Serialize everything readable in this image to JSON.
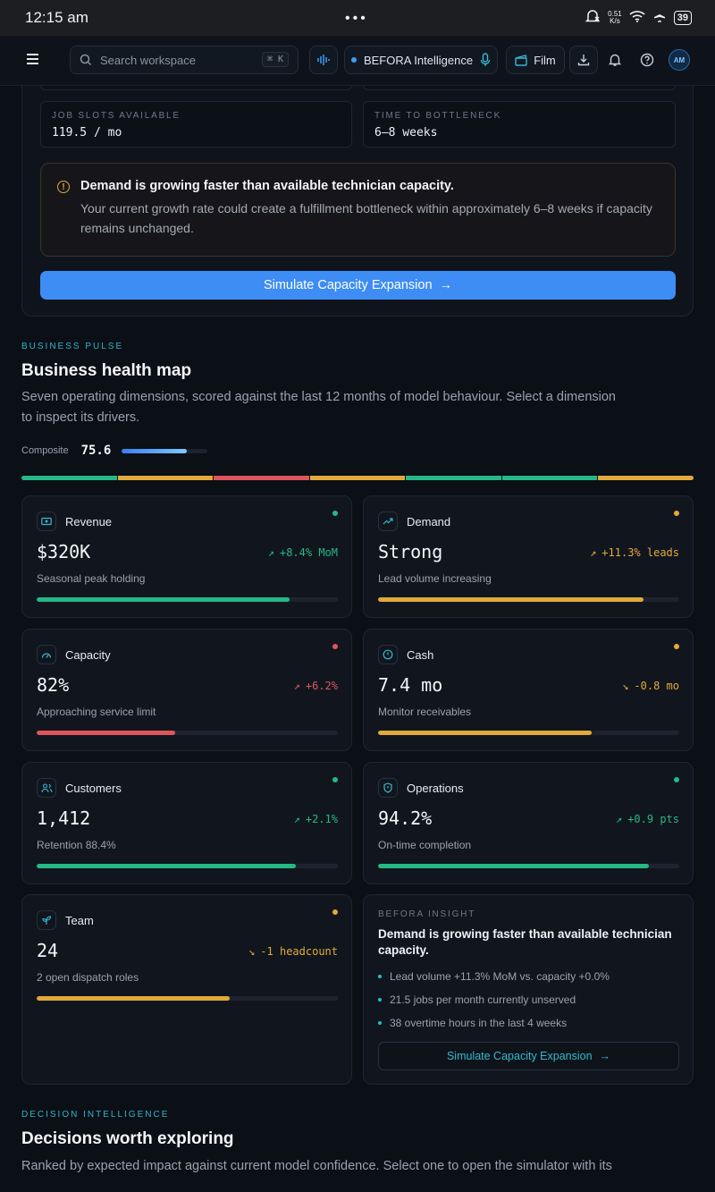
{
  "status_bar": {
    "time": "12:15 am",
    "net_speed_top": "0.51",
    "net_speed_bottom": "K/s",
    "battery": "39"
  },
  "topbar": {
    "search_placeholder": "Search workspace",
    "search_shortcut": "⌘ K",
    "assistant_label": "BEFORA Intelligence",
    "film_label": "Film"
  },
  "avatar_initials": "AM",
  "capacity_panel": {
    "job_slots_label": "JOB SLOTS AVAILABLE",
    "job_slots_value": "119.5 / mo",
    "bottleneck_label": "TIME TO BOTTLENECK",
    "bottleneck_value": "6–8 weeks",
    "alert_title": "Demand is growing faster than available technician capacity.",
    "alert_body": "Your current growth rate could create a fulfillment bottleneck within approximately 6–8 weeks if capacity remains unchanged.",
    "cta": "Simulate Capacity Expansion"
  },
  "business_pulse": {
    "eyebrow": "BUSINESS PULSE",
    "title": "Business health map",
    "description": "Seven operating dimensions, scored against the last 12 months of model behaviour. Select a dimension to inspect its drivers.",
    "composite_label": "Composite",
    "composite_value": "75.6",
    "composite_fraction": 0.756
  },
  "colors": {
    "green": "#25b886",
    "amber": "#e2a93b",
    "red": "#e0555c",
    "accent": "#3d8df5",
    "teal": "#2fb7c9"
  },
  "segments": [
    "green",
    "amber",
    "red",
    "amber",
    "green",
    "green",
    "amber"
  ],
  "cards": [
    {
      "name": "Revenue",
      "icon": "banknote-icon",
      "value": "$320K",
      "delta": "+8.4% MoM",
      "trend": "up",
      "sub": "Seasonal peak holding",
      "status": "green",
      "progress": 0.84
    },
    {
      "name": "Demand",
      "icon": "trending-up-icon",
      "value": "Strong",
      "delta": "+11.3% leads",
      "trend": "up",
      "sub": "Lead volume increasing",
      "status": "amber",
      "progress": 0.88
    },
    {
      "name": "Capacity",
      "icon": "gauge-icon",
      "value": "82%",
      "delta": "+6.2%",
      "trend": "up",
      "sub": "Approaching service limit",
      "status": "red",
      "progress": 0.46
    },
    {
      "name": "Cash",
      "icon": "clock-icon",
      "value": "7.4 mo",
      "delta": "-0.8 mo",
      "trend": "down",
      "sub": "Monitor receivables",
      "status": "amber",
      "progress": 0.71
    },
    {
      "name": "Customers",
      "icon": "users-icon",
      "value": "1,412",
      "delta": "+2.1%",
      "trend": "up",
      "sub": "Retention 88.4%",
      "status": "green",
      "progress": 0.86
    },
    {
      "name": "Operations",
      "icon": "shield-icon",
      "value": "94.2%",
      "delta": "+0.9 pts",
      "trend": "up",
      "sub": "On-time completion",
      "status": "green",
      "progress": 0.9
    },
    {
      "name": "Team",
      "icon": "sprout-icon",
      "value": "24",
      "delta": "-1 headcount",
      "trend": "down",
      "sub": "2 open dispatch roles",
      "status": "amber",
      "progress": 0.64
    }
  ],
  "insight": {
    "eyebrow": "BEFORA INSIGHT",
    "title": "Demand is growing faster than available technician capacity.",
    "bullets": [
      "Lead volume +11.3% MoM vs. capacity +0.0%",
      "21.5 jobs per month currently unserved",
      "38 overtime hours in the last 4 weeks"
    ],
    "cta": "Simulate Capacity Expansion"
  },
  "decisions": {
    "eyebrow": "DECISION INTELLIGENCE",
    "title": "Decisions worth exploring",
    "description": "Ranked by expected impact against current model confidence. Select one to open the simulator with its"
  }
}
